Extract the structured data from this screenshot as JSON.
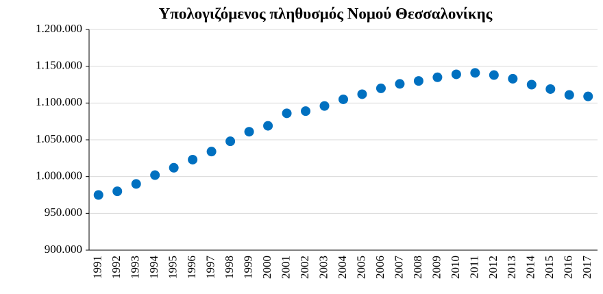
{
  "chart_data": {
    "type": "scatter",
    "title": "Υπολογιζόμενος πληθυσμός Νομού Θεσσαλονίκης",
    "categories": [
      "1991",
      "1992",
      "1993",
      "1994",
      "1995",
      "1996",
      "1997",
      "1998",
      "1999",
      "2000",
      "2001",
      "2002",
      "2003",
      "2004",
      "2005",
      "2006",
      "2007",
      "2008",
      "2009",
      "2010",
      "2011",
      "2012",
      "2013",
      "2014",
      "2015",
      "2016",
      "2017"
    ],
    "values": [
      975000,
      980000,
      990000,
      1002000,
      1012000,
      1023000,
      1034000,
      1048000,
      1061000,
      1069000,
      1086000,
      1089000,
      1096000,
      1105000,
      1112000,
      1120000,
      1126000,
      1130000,
      1135000,
      1139000,
      1141000,
      1138000,
      1133000,
      1125000,
      1119000,
      1111000,
      1109000
    ],
    "color": "#0070c0",
    "ylim": [
      900000,
      1200000
    ],
    "yticks": [
      {
        "value": 900000,
        "label": "900.000"
      },
      {
        "value": 950000,
        "label": "950.000"
      },
      {
        "value": 1000000,
        "label": "1.000.000"
      },
      {
        "value": 1050000,
        "label": "1.050.000"
      },
      {
        "value": 1100000,
        "label": "1.100.000"
      },
      {
        "value": 1150000,
        "label": "1.150.000"
      },
      {
        "value": 1200000,
        "label": "1.200.000"
      }
    ],
    "grid": true
  }
}
